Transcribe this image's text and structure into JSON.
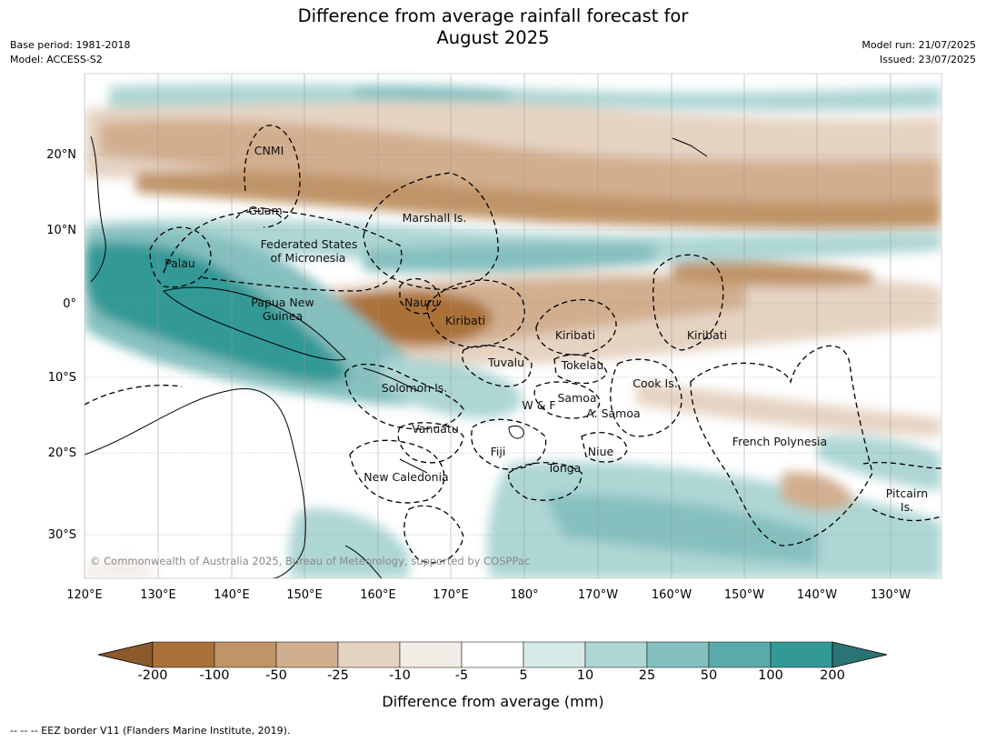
{
  "title_line1": "Difference from average rainfall forecast for",
  "title_line2": "August 2025",
  "meta_left": {
    "base_period": "Base period: 1981-2018",
    "model": "Model: ACCESS-S2"
  },
  "meta_right": {
    "model_run": "Model run: 21/07/2025",
    "issued": "Issued: 23/07/2025"
  },
  "map": {
    "lat_ticks": [
      "20°N",
      "10°N",
      "0°",
      "10°S",
      "20°S",
      "30°S"
    ],
    "lon_ticks": [
      "120°E",
      "130°E",
      "140°E",
      "150°E",
      "160°E",
      "170°E",
      "180°",
      "170°W",
      "160°W",
      "150°W",
      "140°W",
      "130°W"
    ],
    "copyright": "© Commonwealth of Australia 2025, Bureau of Meteorology, supported by COSPPac",
    "regions": {
      "cnmi": "CNMI",
      "guam": "Guam",
      "marshall": "Marshall Is.",
      "fsm1": "Federated States",
      "fsm2": "of Micronesia",
      "palau": "Palau",
      "png1": "Papua New",
      "png2": "Guinea",
      "nauru": "Nauru",
      "kiribati_w": "Kiribati",
      "kiribati_c": "Kiribati",
      "kiribati_e": "Kiribati",
      "tuvalu": "Tuvalu",
      "tokelau": "Tokelau",
      "cook": "Cook Is.",
      "solomon": "Solomon Is.",
      "wf": "W & F",
      "samoa": "Samoa",
      "asamoa": "A. Samoa",
      "vanuatu": "Vanuatu",
      "fiji": "Fiji",
      "niue": "Niue",
      "tonga": "Tonga",
      "frenchpoly": "French Polynesia",
      "newcal": "New Caledonia",
      "pitcairn1": "Pitcairn",
      "pitcairn2": "Is."
    }
  },
  "colorbar": {
    "title": "Difference from average (mm)",
    "labels": [
      "-200",
      "-100",
      "-50",
      "-25",
      "-10",
      "-5",
      "5",
      "10",
      "25",
      "50",
      "100",
      "200"
    ],
    "colors": [
      "#8c5a2a",
      "#aa7138",
      "#c09468",
      "#d1ae8e",
      "#e5d3c2",
      "#f2ede6",
      "#ffffff",
      "#d6eae8",
      "#add6d4",
      "#85c0bf",
      "#5aabaa",
      "#329996",
      "#2a7574"
    ]
  },
  "footer": "--  --  -- EEZ border V11 (Flanders Marine Institute, 2019)."
}
